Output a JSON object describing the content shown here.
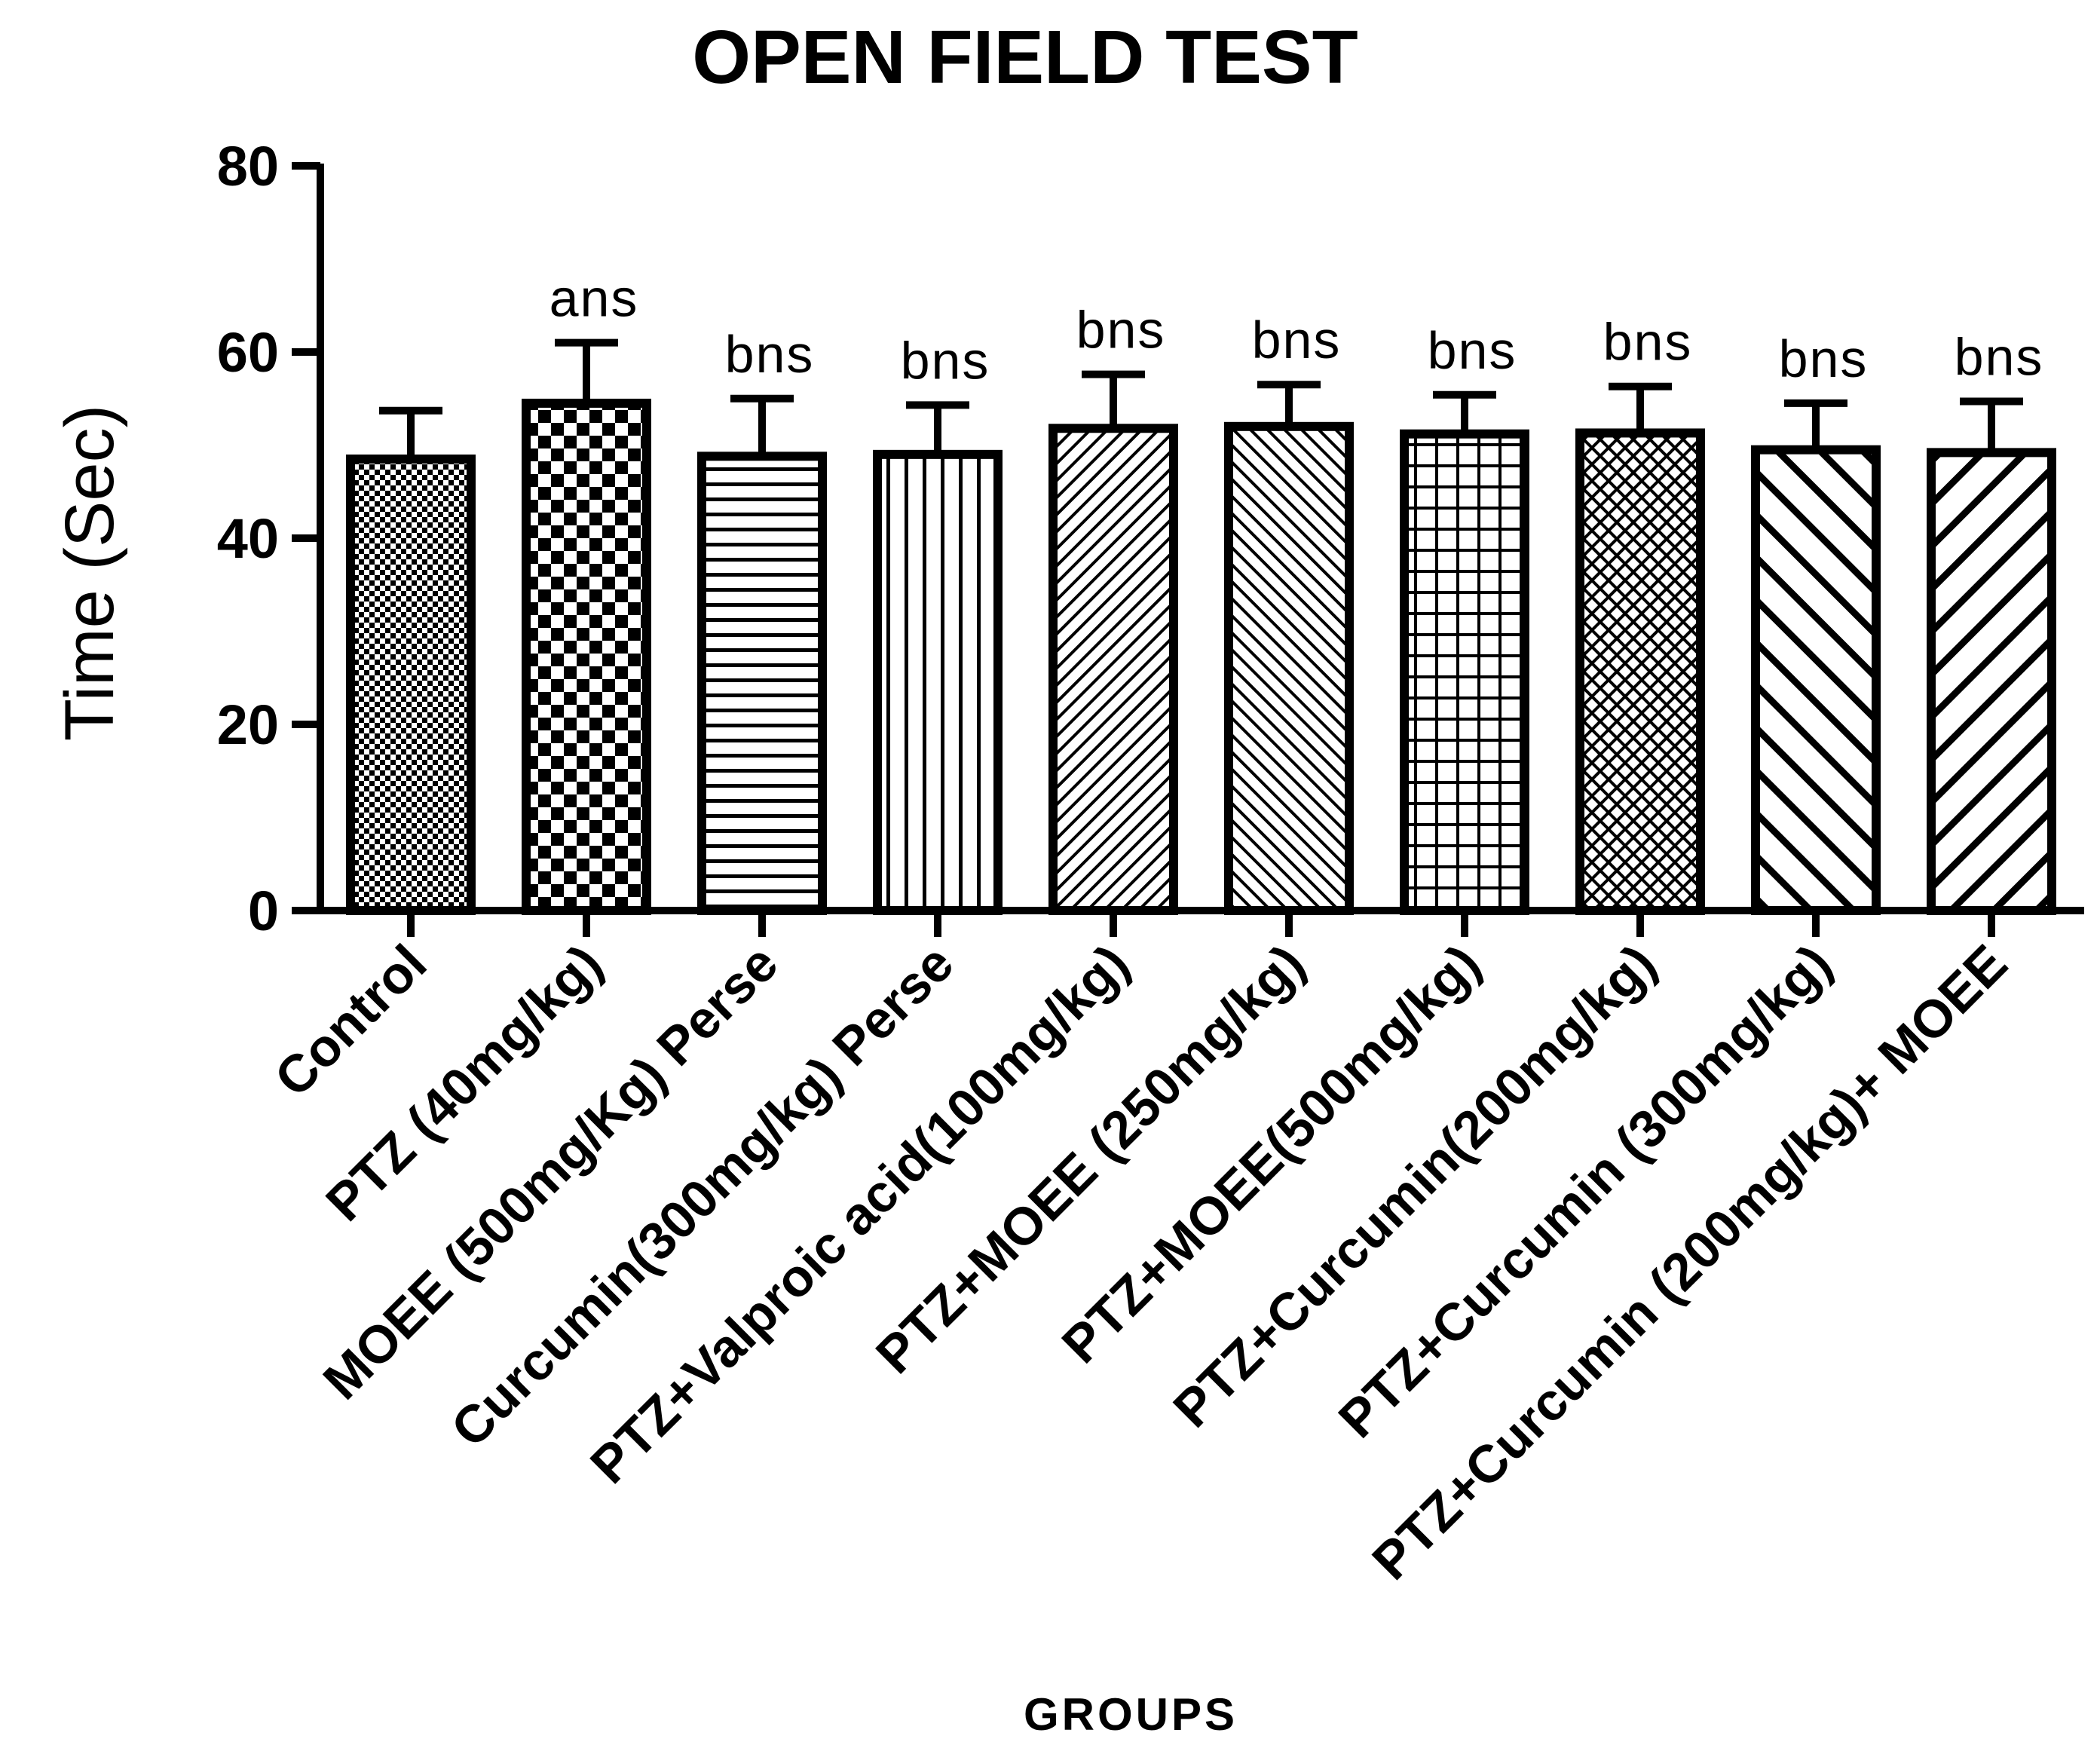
{
  "chart_data": {
    "type": "bar",
    "title": "OPEN FIELD TEST",
    "xlabel": "GROUPS",
    "ylabel": "Time (Sec)",
    "ylim": [
      0,
      80
    ],
    "yticks": [
      0,
      20,
      40,
      60,
      80
    ],
    "grid": false,
    "categories": [
      "Control",
      "PTZ (40mg/kg)",
      "MOEE (500mg/Kg) Perse",
      "Curcumin(300mg/kg) Perse",
      "PTZ+Valproic acid(100mg/kg)",
      "PTZ+MOEE (250mg/kg)",
      "PTZ+MOEE(500mg/kg)",
      "PTZ+Curcumin(200mg/kg)",
      "PTZ+Curcumin (300mg/kg)",
      "PTZ+Curcumin (200mg/kg)+ MOEE"
    ],
    "values": [
      48.5,
      54.5,
      48.8,
      49.0,
      51.8,
      52.0,
      51.2,
      51.3,
      49.5,
      49.2
    ],
    "errors": [
      5.2,
      6.5,
      6.2,
      5.3,
      5.8,
      4.5,
      4.2,
      5.0,
      5.0,
      5.5
    ],
    "annotations": [
      "",
      "ans",
      "bns",
      "bns",
      "bns",
      "bns",
      "bns",
      "bns",
      "bns",
      "bns"
    ],
    "patterns": [
      "small-checker",
      "large-checker",
      "horizontal-lines",
      "vertical-lines",
      "fine-diagonal-right",
      "fine-diagonal-left",
      "grid",
      "crosshatch",
      "wide-diagonal-left",
      "wide-diagonal-right"
    ]
  }
}
